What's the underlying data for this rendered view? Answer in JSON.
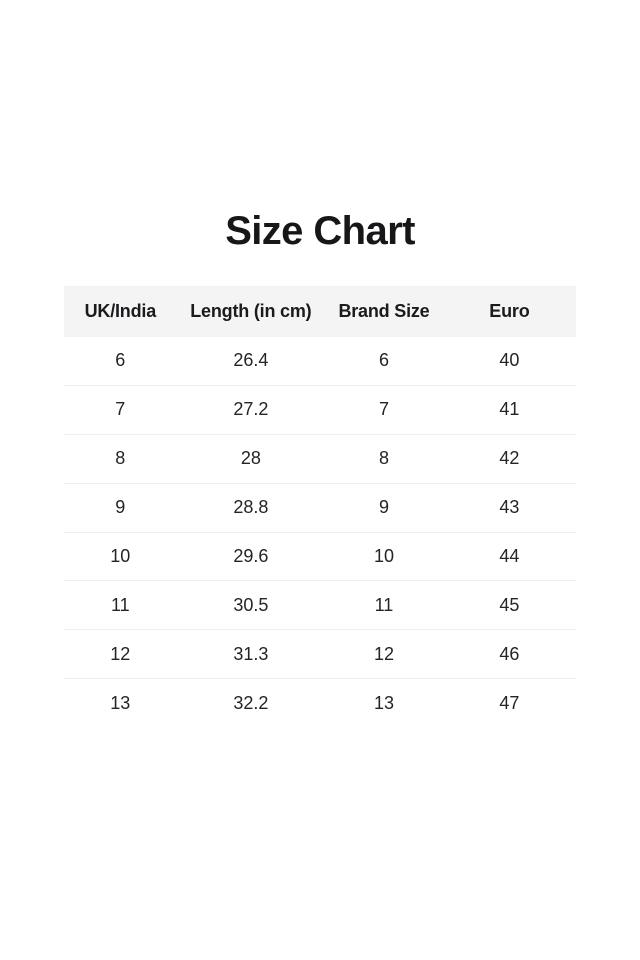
{
  "page": {
    "title": "Size Chart",
    "background_color": "#ffffff",
    "text_color": "#1a1a1a"
  },
  "table": {
    "header_background_color": "#f4f4f5",
    "divider_color": "#efefef",
    "columns": [
      "UK/India",
      "Length (in cm)",
      "Brand Size",
      "Euro"
    ],
    "rows": [
      [
        "6",
        "26.4",
        "6",
        "40"
      ],
      [
        "7",
        "27.2",
        "7",
        "41"
      ],
      [
        "8",
        "28",
        "8",
        "42"
      ],
      [
        "9",
        "28.8",
        "9",
        "43"
      ],
      [
        "10",
        "29.6",
        "10",
        "44"
      ],
      [
        "11",
        "30.5",
        "11",
        "45"
      ],
      [
        "12",
        "31.3",
        "12",
        "46"
      ],
      [
        "13",
        "32.2",
        "13",
        "47"
      ]
    ]
  }
}
